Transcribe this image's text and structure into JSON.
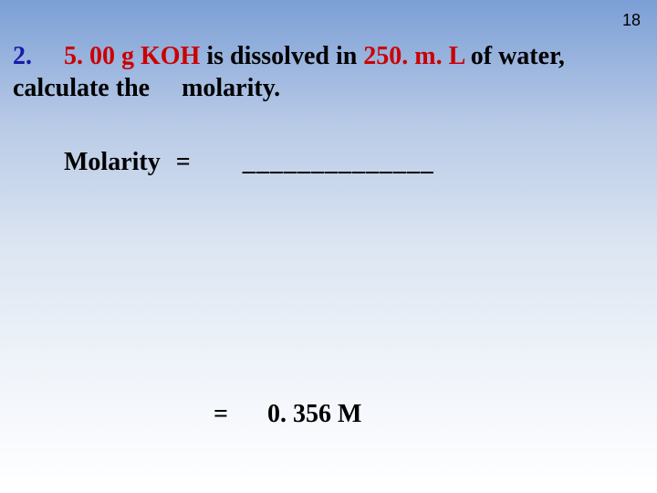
{
  "page_number": "18",
  "problem": {
    "num": "2.",
    "part1": "5. 00 g KOH",
    "mid": " is dissolved in ",
    "part2": "250. m. L",
    "tail": " of water, calculate the",
    "tail2": "molarity."
  },
  "molarity": {
    "label": "Molarity",
    "eq": "=",
    "blank": "______________"
  },
  "result": {
    "eq": "=",
    "value": "0. 356 M"
  },
  "colors": {
    "background_top": "#7b9fd6",
    "background_bottom": "#ffffff",
    "text": "#000000",
    "number_color": "#1a1aaa",
    "highlight_color": "#cc0000"
  },
  "typography": {
    "body_font": "Times New Roman",
    "pagenum_font": "Arial",
    "body_size_pt": 21,
    "pagenum_size_pt": 14,
    "weight": "bold"
  }
}
